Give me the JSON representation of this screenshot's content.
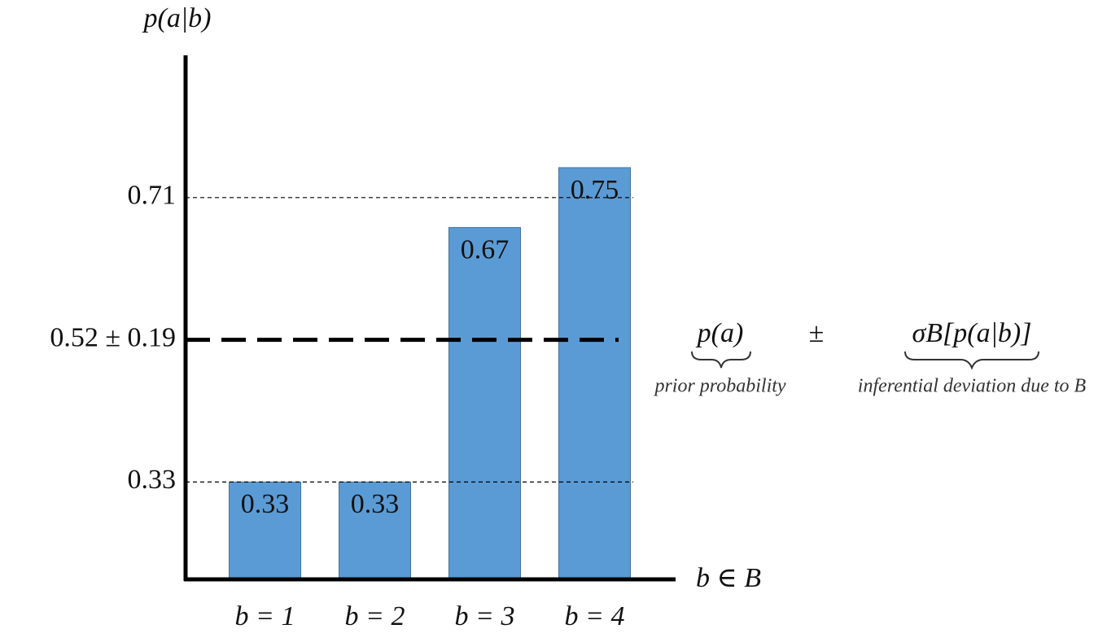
{
  "chart_data": {
    "type": "bar",
    "y_label": "p(a|b)",
    "x_label": "b ∈ B",
    "categories": [
      "b = 1",
      "b = 2",
      "b = 3",
      "b = 4"
    ],
    "values": [
      0.33,
      0.33,
      0.67,
      0.75
    ],
    "color": "#5b9bd5",
    "ylim": [
      0.2,
      0.9
    ],
    "yticks": [
      0.33,
      {
        "value": 0.52,
        "label": "0.52 ± 0.19"
      },
      0.71
    ],
    "grid": true,
    "annotation": {
      "prior": "p(a)",
      "plus_minus": "±",
      "deviation": "σB[p(a|b)]",
      "prior_label": "prior probability",
      "deviation_label": "inferential deviation due to B"
    }
  }
}
